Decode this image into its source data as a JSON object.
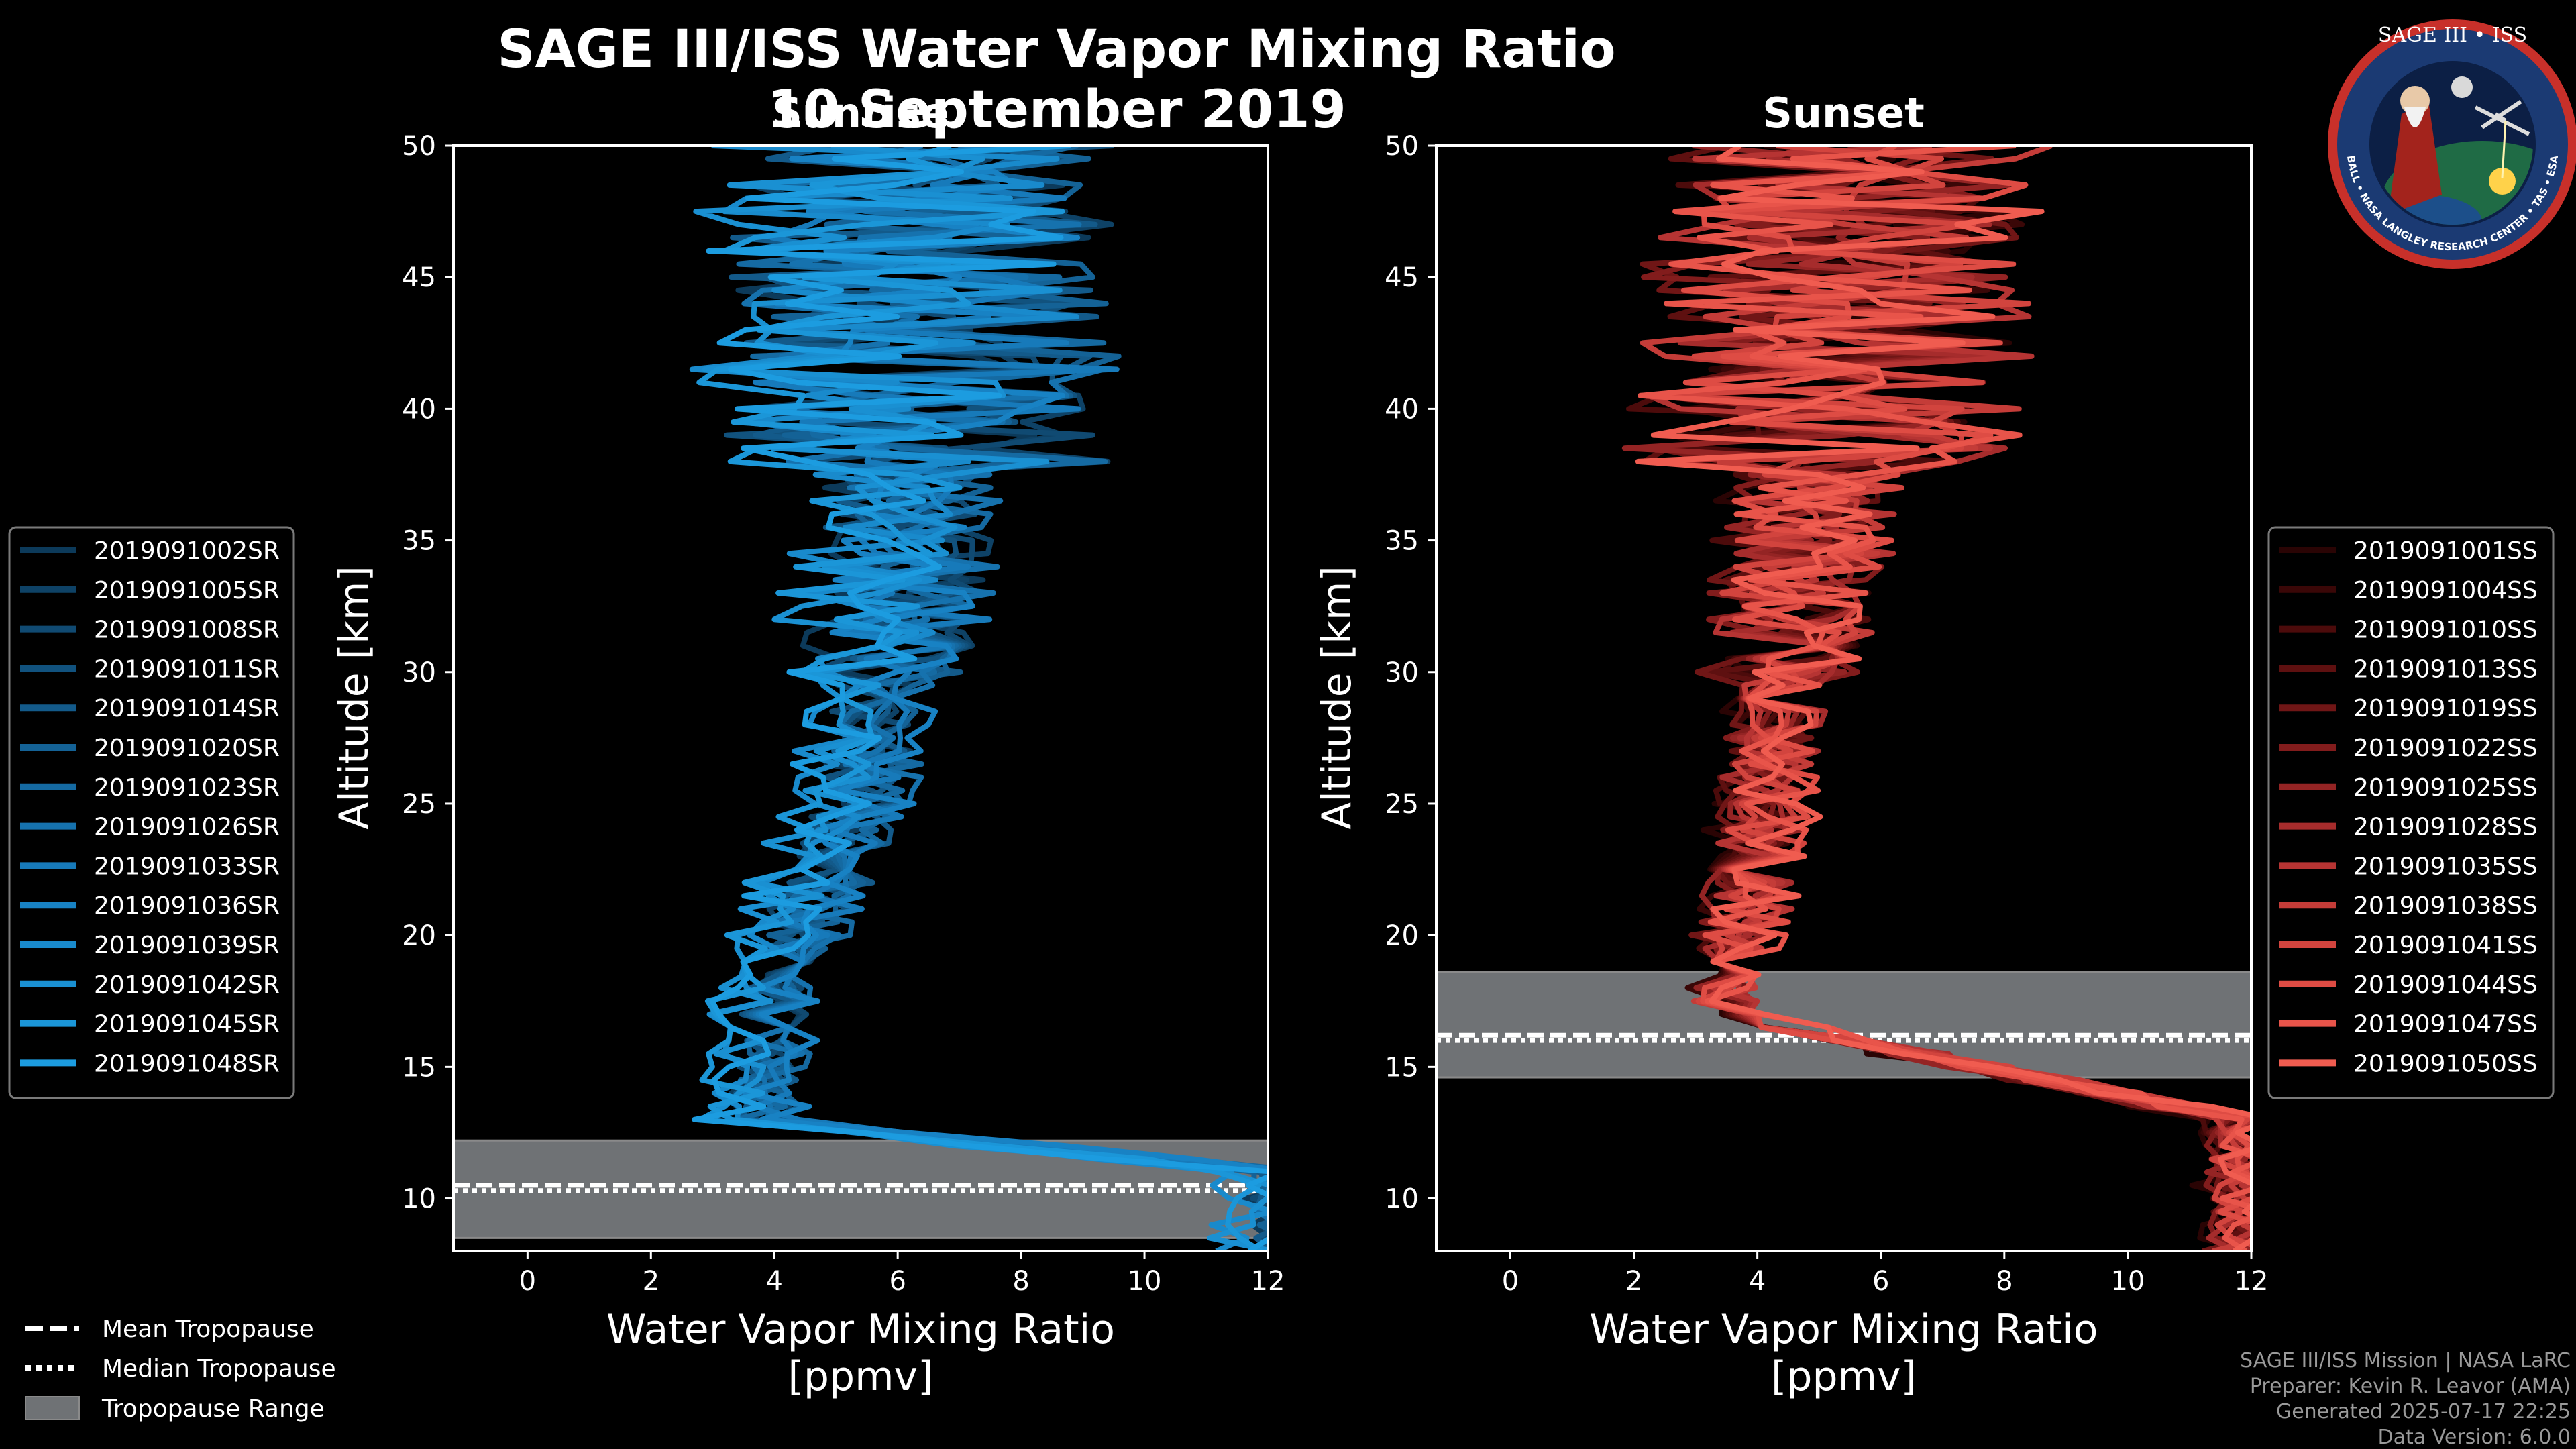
{
  "title": "SAGE III/ISS Water Vapor Mixing Ratio",
  "date": "10 September 2019",
  "logo": {
    "top_text": "SAGE III • ISS",
    "ring_text": "BALL • NASA LANGLEY RESEARCH CENTER • TAS • ESA"
  },
  "legend_common": [
    {
      "label": "Mean Tropopause",
      "style": "dashed"
    },
    {
      "label": "Median Tropopause",
      "style": "dotted"
    },
    {
      "label": "Tropopause Range",
      "style": "patch"
    }
  ],
  "credits": [
    "SAGE III/ISS Mission | NASA LaRC",
    "Preparer: Kevin R. Leavor (AMA)",
    "Generated 2025-07-17 22:25",
    "Data Version: 6.0.0"
  ],
  "chart_data": [
    {
      "type": "line",
      "panel": "left",
      "subtitle": "Sunrise",
      "xlabel_line1": "Water Vapor Mixing Ratio",
      "xlabel_line2": "[ppmv]",
      "ylabel": "Altitude [km]",
      "xlim": [
        -1.2,
        12
      ],
      "ylim": [
        8,
        50
      ],
      "xticks": [
        0,
        2,
        4,
        6,
        8,
        10,
        12
      ],
      "yticks": [
        10,
        15,
        20,
        25,
        30,
        35,
        40,
        45,
        50
      ],
      "tropopause": {
        "mean": 10.5,
        "median": 10.3,
        "range": [
          8.5,
          12.2
        ]
      },
      "legend_position": "outside-left",
      "series": [
        {
          "name": "2019091002SR",
          "color": "#0c3a5a"
        },
        {
          "name": "2019091005SR",
          "color": "#0e4266"
        },
        {
          "name": "2019091008SR",
          "color": "#104a72"
        },
        {
          "name": "2019091011SR",
          "color": "#11527e"
        },
        {
          "name": "2019091014SR",
          "color": "#135a8a"
        },
        {
          "name": "2019091020SR",
          "color": "#146296"
        },
        {
          "name": "2019091023SR",
          "color": "#156aa2"
        },
        {
          "name": "2019091026SR",
          "color": "#1672ae"
        },
        {
          "name": "2019091033SR",
          "color": "#177aba"
        },
        {
          "name": "2019091036SR",
          "color": "#1882c4"
        },
        {
          "name": "2019091039SR",
          "color": "#198acc"
        },
        {
          "name": "2019091042SR",
          "color": "#1a90d2"
        },
        {
          "name": "2019091045SR",
          "color": "#1b96d8"
        },
        {
          "name": "2019091048SR",
          "color": "#1c9ce0"
        }
      ]
    },
    {
      "type": "line",
      "panel": "right",
      "subtitle": "Sunset",
      "xlabel_line1": "Water Vapor Mixing Ratio",
      "xlabel_line2": "[ppmv]",
      "ylabel": "Altitude [km]",
      "xlim": [
        -1.2,
        12
      ],
      "ylim": [
        8,
        50
      ],
      "xticks": [
        0,
        2,
        4,
        6,
        8,
        10,
        12
      ],
      "yticks": [
        10,
        15,
        20,
        25,
        30,
        35,
        40,
        45,
        50
      ],
      "tropopause": {
        "mean": 16.2,
        "median": 16.0,
        "range": [
          14.6,
          18.6
        ]
      },
      "legend_position": "outside-right",
      "series": [
        {
          "name": "2019091001SS",
          "color": "#2a0404"
        },
        {
          "name": "2019091004SS",
          "color": "#3a0707"
        },
        {
          "name": "2019091010SS",
          "color": "#4c0b0b"
        },
        {
          "name": "2019091013SS",
          "color": "#5e1010"
        },
        {
          "name": "2019091019SS",
          "color": "#701616"
        },
        {
          "name": "2019091022SS",
          "color": "#821c1c"
        },
        {
          "name": "2019091025SS",
          "color": "#942424"
        },
        {
          "name": "2019091028SS",
          "color": "#a62c2c"
        },
        {
          "name": "2019091035SS",
          "color": "#b63433"
        },
        {
          "name": "2019091038SS",
          "color": "#c43c38"
        },
        {
          "name": "2019091041SS",
          "color": "#d2443e"
        },
        {
          "name": "2019091044SS",
          "color": "#de4c44"
        },
        {
          "name": "2019091047SS",
          "color": "#e8544a"
        },
        {
          "name": "2019091050SS",
          "color": "#f05c50"
        }
      ]
    }
  ]
}
